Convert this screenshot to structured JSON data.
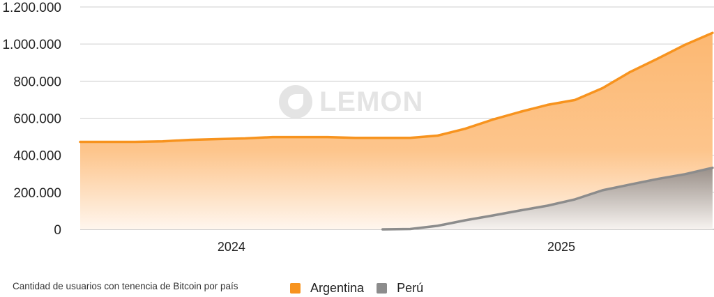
{
  "chart_data": {
    "type": "area",
    "title": "",
    "caption": "Cantidad de usuarios con tenencia de Bitcoin por país",
    "xlabel": "",
    "ylabel": "",
    "ylim": [
      0,
      1200000
    ],
    "yticks": [
      0,
      200000,
      400000,
      600000,
      800000,
      1000000,
      1200000
    ],
    "ytick_labels": [
      "0",
      "200.000",
      "400.000",
      "600.000",
      "800.000",
      "1.000.000",
      "1.200.000"
    ],
    "xtick_labels": [
      {
        "label": "2024",
        "month_center": 5.5
      },
      {
        "label": "2025",
        "month_center": 17.5
      }
    ],
    "x_months": [
      0,
      1,
      2,
      3,
      4,
      5,
      6,
      7,
      8,
      9,
      10,
      11,
      12,
      13,
      14,
      15,
      16,
      17,
      18,
      19,
      20,
      21,
      22,
      23
    ],
    "grid": true,
    "legend_position": "bottom",
    "series": [
      {
        "name": "Argentina",
        "color": "#f7931e",
        "values": [
          472000,
          472000,
          472000,
          475000,
          483000,
          487000,
          491000,
          498000,
          498000,
          498000,
          494000,
          494000,
          494000,
          506000,
          543000,
          592000,
          634000,
          672000,
          698000,
          762000,
          849000,
          921000,
          996000,
          1060000
        ]
      },
      {
        "name": "Perú",
        "color": "#8c8c8c",
        "values": [
          null,
          null,
          null,
          null,
          null,
          null,
          null,
          null,
          null,
          null,
          null,
          0,
          2000,
          19000,
          49000,
          75000,
          102000,
          128000,
          162000,
          211000,
          242000,
          272000,
          298000,
          332000
        ]
      }
    ]
  },
  "watermark": "LEMON"
}
